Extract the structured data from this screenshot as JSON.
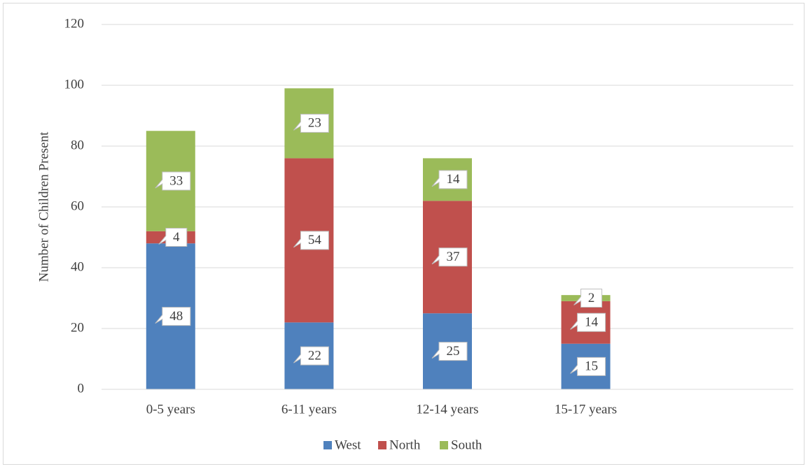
{
  "chart_data": {
    "type": "stacked-bar",
    "y_label": "Number of Children Present",
    "categories": [
      "0-5 years",
      "6-11 years",
      "12-14 years",
      "15-17 years",
      null
    ],
    "series": [
      {
        "name": "West",
        "color": "#4f81bd",
        "values": [
          48,
          22,
          25,
          15,
          null
        ]
      },
      {
        "name": "North",
        "color": "#c0504d",
        "values": [
          4,
          54,
          37,
          14,
          null
        ]
      },
      {
        "name": "South",
        "color": "#9bbb59",
        "values": [
          33,
          23,
          14,
          2,
          null
        ]
      }
    ],
    "ylim": [
      0,
      120
    ],
    "yticks": [
      0,
      20,
      40,
      60,
      80,
      100,
      120
    ],
    "grid": true,
    "legend": "bottom"
  }
}
